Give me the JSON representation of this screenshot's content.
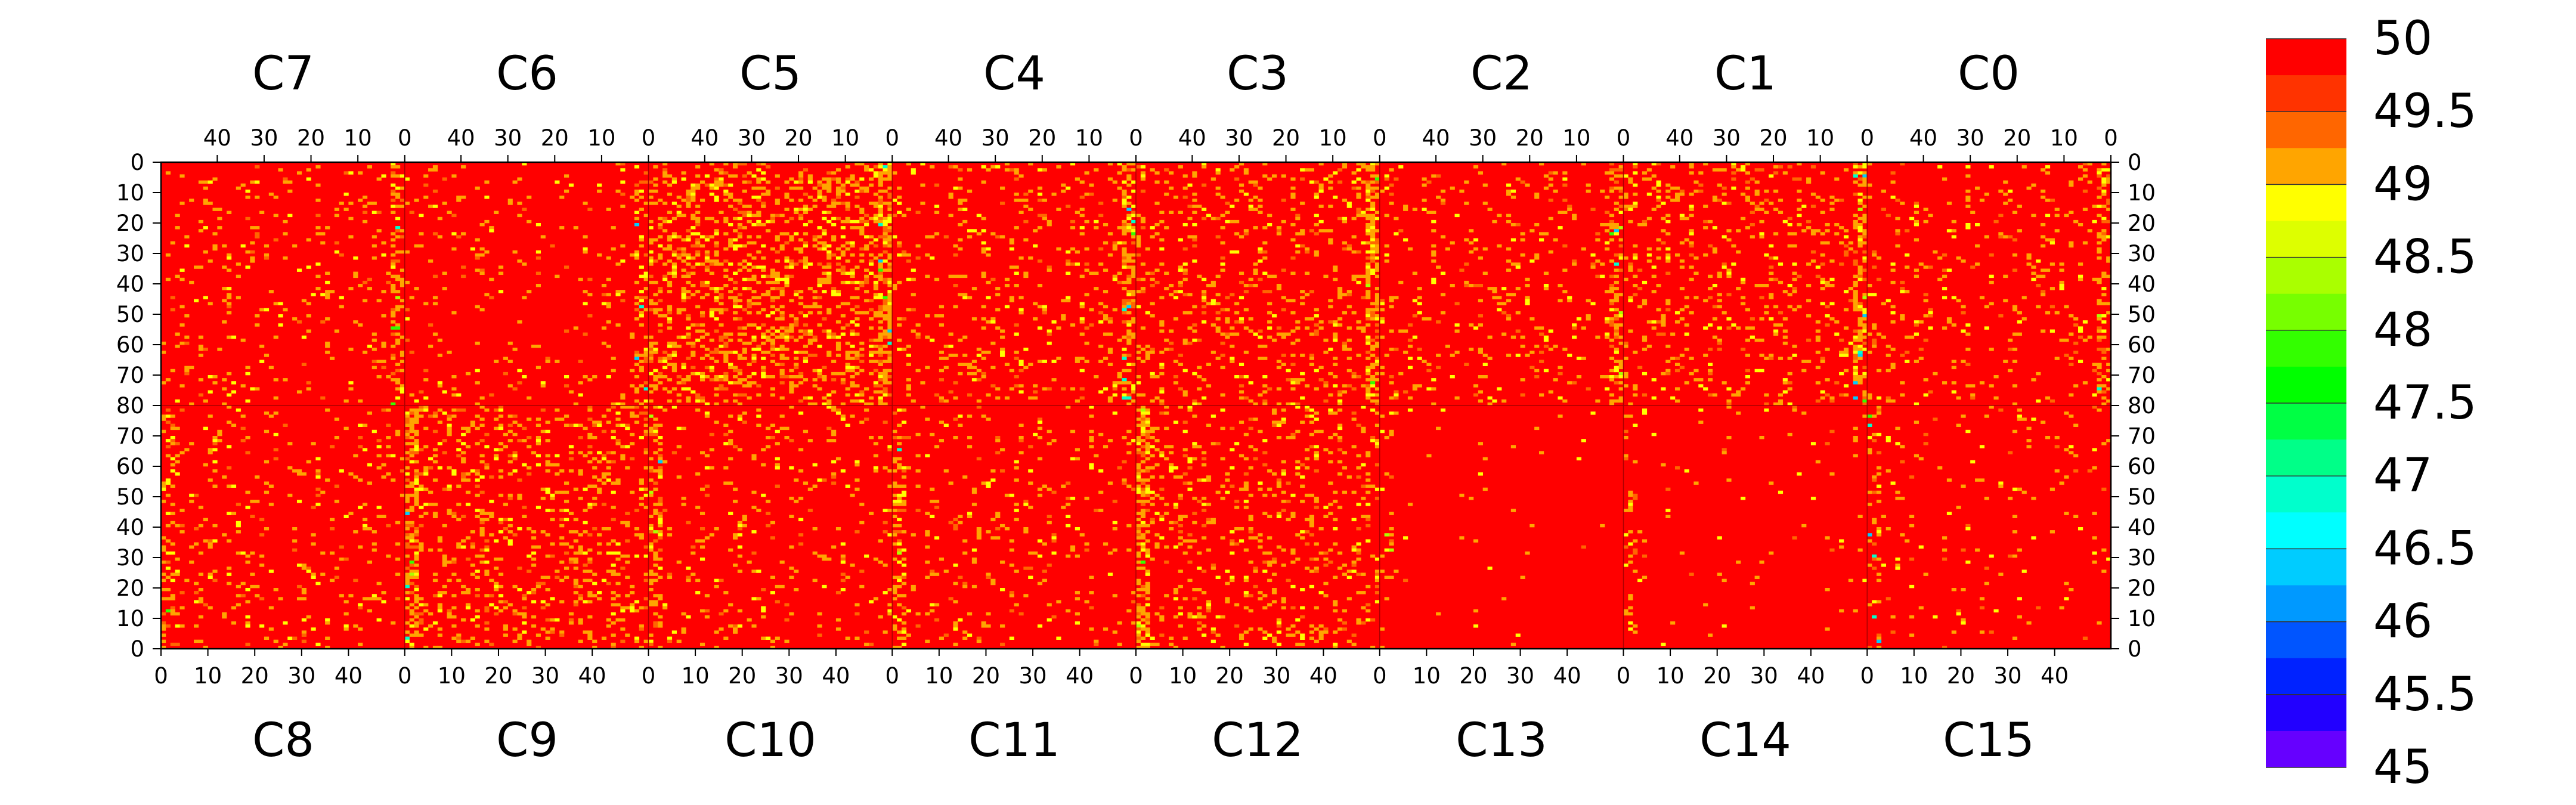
{
  "chart_data": {
    "type": "heatmap",
    "title": "",
    "xlabel": "",
    "ylabel": "",
    "zlim": [
      45,
      50
    ],
    "grid": false,
    "top_chips": [
      "C7",
      "C6",
      "C5",
      "C4",
      "C3",
      "C2",
      "C1",
      "C0"
    ],
    "bottom_chips": [
      "C8",
      "C9",
      "C10",
      "C11",
      "C12",
      "C13",
      "C14",
      "C15"
    ],
    "top_x_tick_labels": [
      "40",
      "30",
      "20",
      "10",
      "0"
    ],
    "bottom_x_tick_labels": [
      "0",
      "10",
      "20",
      "30",
      "40"
    ],
    "top_y_tick_labels": [
      "0",
      "10",
      "20",
      "30",
      "40",
      "50",
      "60",
      "70",
      "80"
    ],
    "bottom_y_tick_labels": [
      "80",
      "70",
      "60",
      "50",
      "40",
      "30",
      "20",
      "10",
      "0"
    ],
    "colorbar_levels": [
      50,
      49.75,
      49.5,
      49.25,
      49,
      48.75,
      48.5,
      48.25,
      48,
      47.75,
      47.5,
      47.25,
      47,
      46.75,
      46.5,
      46.25,
      46,
      45.75,
      45.5,
      45.25
    ],
    "colorbar_colors": [
      "#ff0000",
      "#ff3300",
      "#ff6600",
      "#ffa500",
      "#ffff00",
      "#ddff00",
      "#aaff00",
      "#77ff00",
      "#33ff00",
      "#00ff00",
      "#00ff44",
      "#00ff88",
      "#00ffcc",
      "#00ffff",
      "#00ccff",
      "#0099ff",
      "#0055ff",
      "#0022ff",
      "#2200ff",
      "#6600ff"
    ],
    "colorbar_labels": [
      "50",
      "49.5",
      "49",
      "48.5",
      "48",
      "47.5",
      "47",
      "46.5",
      "46",
      "45.5",
      "45"
    ],
    "base_value": 50,
    "column_hot_scale": [
      0.07,
      0.05,
      0.28,
      0.11,
      0.14,
      0.09,
      0.13,
      0.08,
      0.07,
      0.16,
      0.07,
      0.07,
      0.14,
      0.01,
      0.02,
      0.03
    ]
  }
}
